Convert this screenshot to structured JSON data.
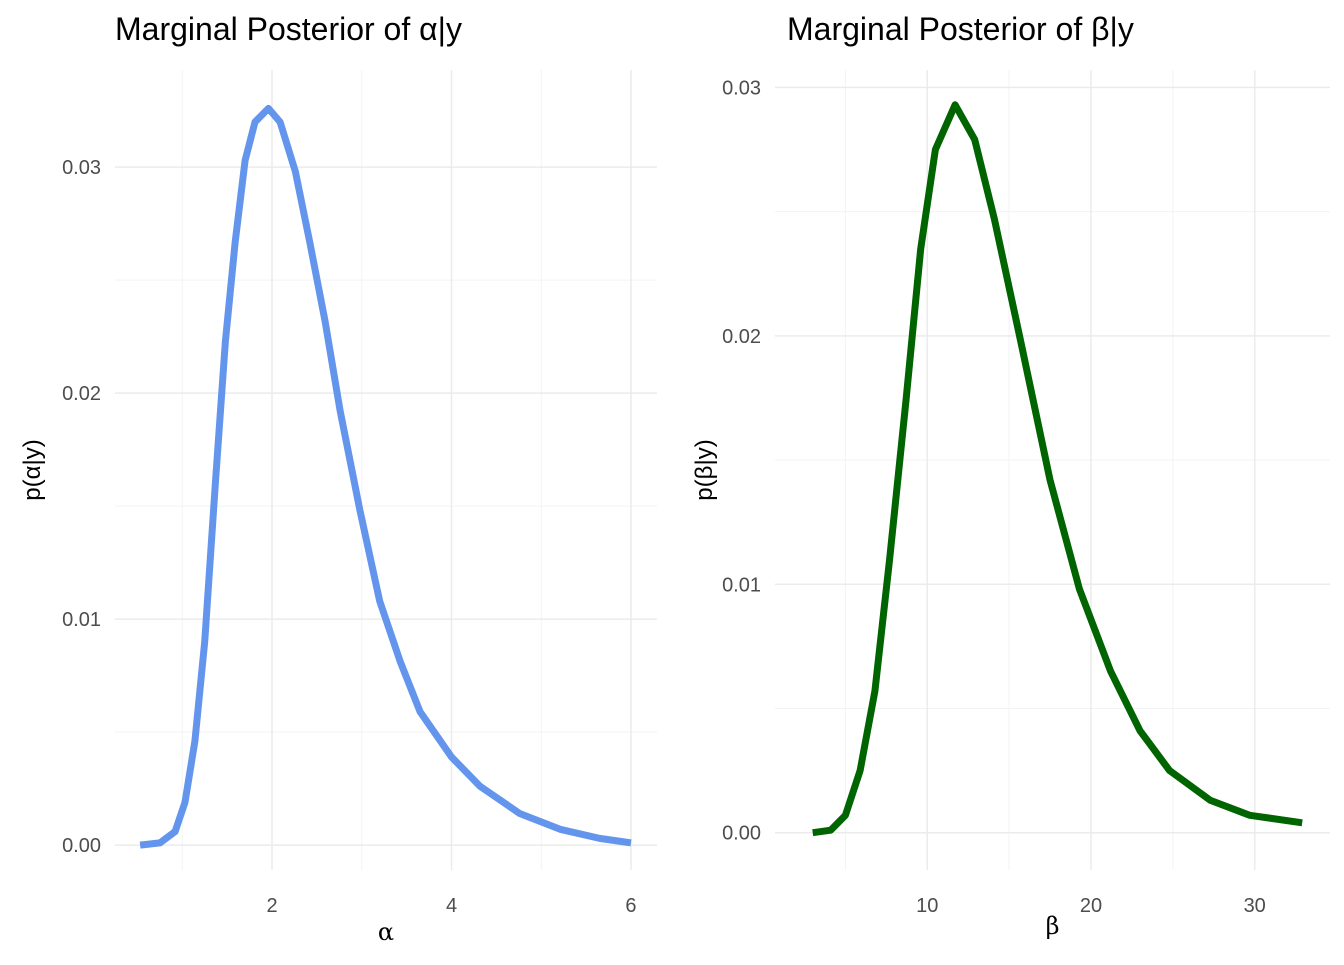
{
  "chart_data": [
    {
      "type": "line",
      "title": "Marginal Posterior of α|y",
      "xlabel": "α",
      "ylabel": "p(α|y)",
      "color": "#6495ED",
      "xlim": [
        0.25,
        6.29
      ],
      "ylim": [
        -0.0011,
        0.0343
      ],
      "xticks": [
        2,
        4,
        6
      ],
      "xtick_labels": [
        "2",
        "4",
        "6"
      ],
      "xminor": [
        1,
        3,
        5
      ],
      "yticks": [
        0,
        0.01,
        0.02,
        0.03
      ],
      "ytick_labels": [
        "0.00",
        "0.01",
        "0.02",
        "0.03"
      ],
      "yminor": [
        0.005,
        0.015,
        0.025
      ],
      "grid": true,
      "x": [
        0.53,
        0.75,
        0.92,
        1.03,
        1.14,
        1.25,
        1.37,
        1.48,
        1.59,
        1.7,
        1.81,
        1.96,
        2.09,
        2.26,
        2.42,
        2.59,
        2.76,
        2.98,
        3.2,
        3.43,
        3.65,
        4.0,
        4.32,
        4.76,
        5.21,
        5.65,
        6.0
      ],
      "y": [
        0,
        0.0001,
        0.0006,
        0.0019,
        0.0046,
        0.009,
        0.0161,
        0.0223,
        0.0267,
        0.0303,
        0.032,
        0.0326,
        0.032,
        0.0298,
        0.0267,
        0.0232,
        0.0192,
        0.0148,
        0.0108,
        0.0081,
        0.0059,
        0.0039,
        0.0026,
        0.0014,
        0.0007,
        0.0003,
        0.0001
      ]
    },
    {
      "type": "line",
      "title": "Marginal Posterior of β|y",
      "xlabel": "β",
      "ylabel": "p(β|y)",
      "color": "#006400",
      "xlim": [
        0.7,
        34.6
      ],
      "ylim": [
        -0.0015,
        0.0307
      ],
      "xticks": [
        10,
        20,
        30
      ],
      "xtick_labels": [
        "10",
        "20",
        "30"
      ],
      "xminor": [
        5,
        15,
        25
      ],
      "yticks": [
        0,
        0.01,
        0.02,
        0.03
      ],
      "ytick_labels": [
        "0.00",
        "0.01",
        "0.02",
        "0.03"
      ],
      "yminor": [
        0.005,
        0.015,
        0.025
      ],
      "grid": true,
      "x": [
        3.0,
        4.1,
        5.0,
        5.9,
        6.8,
        7.7,
        8.7,
        9.6,
        10.5,
        11.7,
        12.9,
        14.1,
        15.7,
        17.5,
        19.3,
        21.2,
        23.0,
        24.8,
        27.3,
        29.7,
        32.9
      ],
      "y": [
        0,
        0.0001,
        0.0007,
        0.0025,
        0.0057,
        0.011,
        0.0174,
        0.0235,
        0.0275,
        0.0293,
        0.0279,
        0.0247,
        0.0198,
        0.0142,
        0.0098,
        0.0065,
        0.0041,
        0.0025,
        0.0013,
        0.0007,
        0.0004
      ]
    }
  ]
}
